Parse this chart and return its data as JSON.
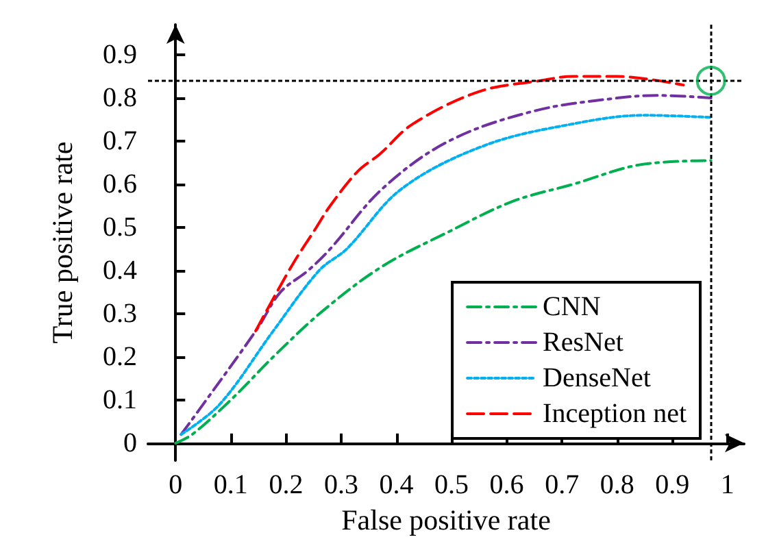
{
  "chart_data": {
    "type": "line",
    "xlabel": "False positive rate",
    "ylabel": "True positive rate",
    "xlim": [
      -0.05,
      1.03
    ],
    "ylim": [
      -0.04,
      0.97
    ],
    "xticks": [
      0,
      0.1,
      0.2,
      0.3,
      0.4,
      0.5,
      0.6,
      0.7,
      0.8,
      0.9,
      1
    ],
    "yticks": [
      0,
      0.1,
      0.2,
      0.3,
      0.4,
      0.5,
      0.6,
      0.7,
      0.8,
      0.9
    ],
    "grid": false,
    "legend": "bottom right",
    "marker": "none",
    "series": [
      {
        "name": "CNN",
        "color": "#00b050",
        "line_style": "dashed",
        "x": [
          0,
          0.03,
          0.1,
          0.185,
          0.27,
          0.375,
          0.495,
          0.61,
          0.72,
          0.84,
          0.97
        ],
        "values": [
          0,
          0.02,
          0.1,
          0.21,
          0.31,
          0.41,
          0.49,
          0.56,
          0.6,
          0.645,
          0.655
        ]
      },
      {
        "name": "ResNet",
        "color": "#7030a0",
        "line_style": "dashed",
        "x": [
          0.01,
          0.05,
          0.148,
          0.19,
          0.24,
          0.28,
          0.375,
          0.495,
          0.65,
          0.8,
          0.875,
          0.97
        ],
        "values": [
          0.02,
          0.09,
          0.265,
          0.35,
          0.4,
          0.45,
          0.59,
          0.7,
          0.77,
          0.8,
          0.806,
          0.8
        ]
      },
      {
        "name": "DenseNet",
        "color": "#00b0f0",
        "line_style": "dotted",
        "x": [
          0.01,
          0.08,
          0.177,
          0.26,
          0.31,
          0.41,
          0.56,
          0.72,
          0.85,
          0.97
        ],
        "values": [
          0.02,
          0.09,
          0.26,
          0.4,
          0.45,
          0.59,
          0.69,
          0.74,
          0.76,
          0.755
        ]
      },
      {
        "name": "Inception net",
        "color": "#ff0000",
        "line_style": "dashed",
        "x": [
          0.145,
          0.21,
          0.255,
          0.28,
          0.33,
          0.37,
          0.43,
          0.55,
          0.66,
          0.72,
          0.8,
          0.92
        ],
        "values": [
          0.26,
          0.41,
          0.5,
          0.55,
          0.63,
          0.67,
          0.74,
          0.815,
          0.84,
          0.85,
          0.85,
          0.83
        ]
      },
      {
        "type": "scatter",
        "color": "#00b050",
        "marker": "circle",
        "x": [
          0.97
        ],
        "values": [
          0.84
        ]
      }
    ],
    "ref_lines": [
      {
        "axis": "y",
        "value": 0.84,
        "color": "#000000",
        "line_style": "dotted"
      },
      {
        "axis": "x",
        "value": 0.97,
        "color": "#000000",
        "line_style": "dotted"
      }
    ]
  }
}
